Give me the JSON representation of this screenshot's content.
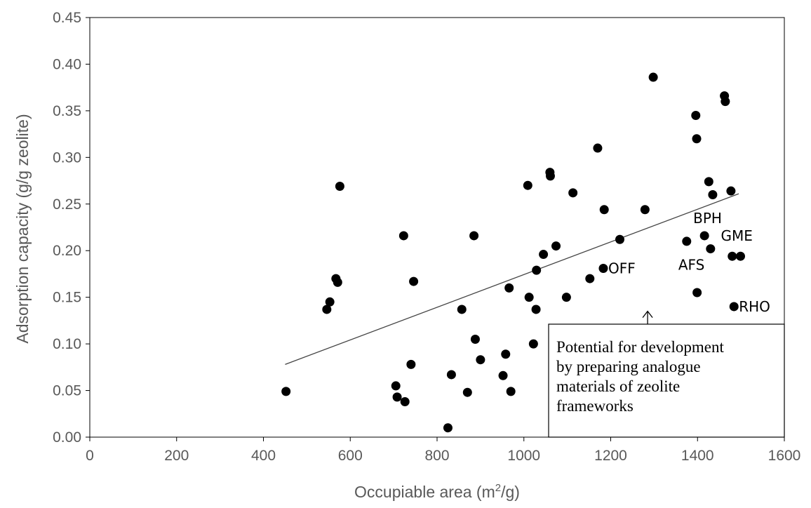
{
  "chart_data": {
    "type": "scatter",
    "xlabel": "Occupiable area (m",
    "xlabel_sup": "2",
    "xlabel_end": "/g)",
    "ylabel": "Adsorption capacity (g/g zeolite)",
    "xlim": [
      0,
      1600
    ],
    "ylim": [
      0,
      0.45
    ],
    "x_ticks": [
      "0",
      "200",
      "400",
      "600",
      "800",
      "1000",
      "1200",
      "1400",
      "1600"
    ],
    "y_ticks": [
      "0.00",
      "0.05",
      "0.10",
      "0.15",
      "0.20",
      "0.25",
      "0.30",
      "0.35",
      "0.40",
      "0.45"
    ],
    "grid": false,
    "legend": "none",
    "point_color": "#000000",
    "trendline": {
      "x": [
        450,
        1495
      ],
      "y": [
        0.078,
        0.261
      ]
    },
    "points": [
      {
        "x": 452,
        "y": 0.049
      },
      {
        "x": 546,
        "y": 0.137
      },
      {
        "x": 553,
        "y": 0.145
      },
      {
        "x": 567,
        "y": 0.17
      },
      {
        "x": 571,
        "y": 0.166
      },
      {
        "x": 576,
        "y": 0.269
      },
      {
        "x": 705,
        "y": 0.055
      },
      {
        "x": 708,
        "y": 0.043
      },
      {
        "x": 723,
        "y": 0.216
      },
      {
        "x": 726,
        "y": 0.038
      },
      {
        "x": 740,
        "y": 0.078
      },
      {
        "x": 746,
        "y": 0.167
      },
      {
        "x": 825,
        "y": 0.01
      },
      {
        "x": 833,
        "y": 0.067
      },
      {
        "x": 857,
        "y": 0.137
      },
      {
        "x": 870,
        "y": 0.048
      },
      {
        "x": 885,
        "y": 0.216
      },
      {
        "x": 888,
        "y": 0.105
      },
      {
        "x": 900,
        "y": 0.083
      },
      {
        "x": 952,
        "y": 0.066
      },
      {
        "x": 958,
        "y": 0.089
      },
      {
        "x": 966,
        "y": 0.16
      },
      {
        "x": 970,
        "y": 0.049
      },
      {
        "x": 1009,
        "y": 0.27
      },
      {
        "x": 1012,
        "y": 0.15
      },
      {
        "x": 1022,
        "y": 0.1
      },
      {
        "x": 1028,
        "y": 0.137
      },
      {
        "x": 1029,
        "y": 0.179
      },
      {
        "x": 1045,
        "y": 0.196
      },
      {
        "x": 1060,
        "y": 0.284
      },
      {
        "x": 1061,
        "y": 0.28
      },
      {
        "x": 1074,
        "y": 0.205
      },
      {
        "x": 1098,
        "y": 0.15
      },
      {
        "x": 1113,
        "y": 0.262
      },
      {
        "x": 1152,
        "y": 0.17
      },
      {
        "x": 1170,
        "y": 0.31
      },
      {
        "x": 1183,
        "y": 0.181
      },
      {
        "x": 1185,
        "y": 0.244
      },
      {
        "x": 1221,
        "y": 0.212
      },
      {
        "x": 1279,
        "y": 0.244
      },
      {
        "x": 1298,
        "y": 0.386
      },
      {
        "x": 1375,
        "y": 0.21
      },
      {
        "x": 1396,
        "y": 0.345
      },
      {
        "x": 1398,
        "y": 0.32
      },
      {
        "x": 1399,
        "y": 0.155
      },
      {
        "x": 1416,
        "y": 0.216
      },
      {
        "x": 1426,
        "y": 0.274
      },
      {
        "x": 1430,
        "y": 0.202
      },
      {
        "x": 1435,
        "y": 0.26
      },
      {
        "x": 1462,
        "y": 0.366
      },
      {
        "x": 1464,
        "y": 0.36
      },
      {
        "x": 1477,
        "y": 0.264
      },
      {
        "x": 1480,
        "y": 0.194
      },
      {
        "x": 1484,
        "y": 0.14
      },
      {
        "x": 1499,
        "y": 0.194
      }
    ],
    "annotations": [
      {
        "text": "OFF",
        "x": 1183,
        "y": 0.181,
        "anchor": "right"
      },
      {
        "text": "BPH",
        "x": 1416,
        "y": 0.216,
        "anchor": "above"
      },
      {
        "text": "GME",
        "x": 1499,
        "y": 0.194,
        "anchor": "above"
      },
      {
        "text": "AFS",
        "x": 1430,
        "y": 0.202,
        "anchor": "below-left"
      },
      {
        "text": "RHO",
        "x": 1484,
        "y": 0.14,
        "anchor": "right"
      }
    ],
    "note_box": {
      "lines": [
        "Potential for development",
        "by preparing analogue",
        "materials of zeolite",
        "frameworks"
      ],
      "arrow_x": 1285,
      "arrow_y": 0.135
    }
  }
}
